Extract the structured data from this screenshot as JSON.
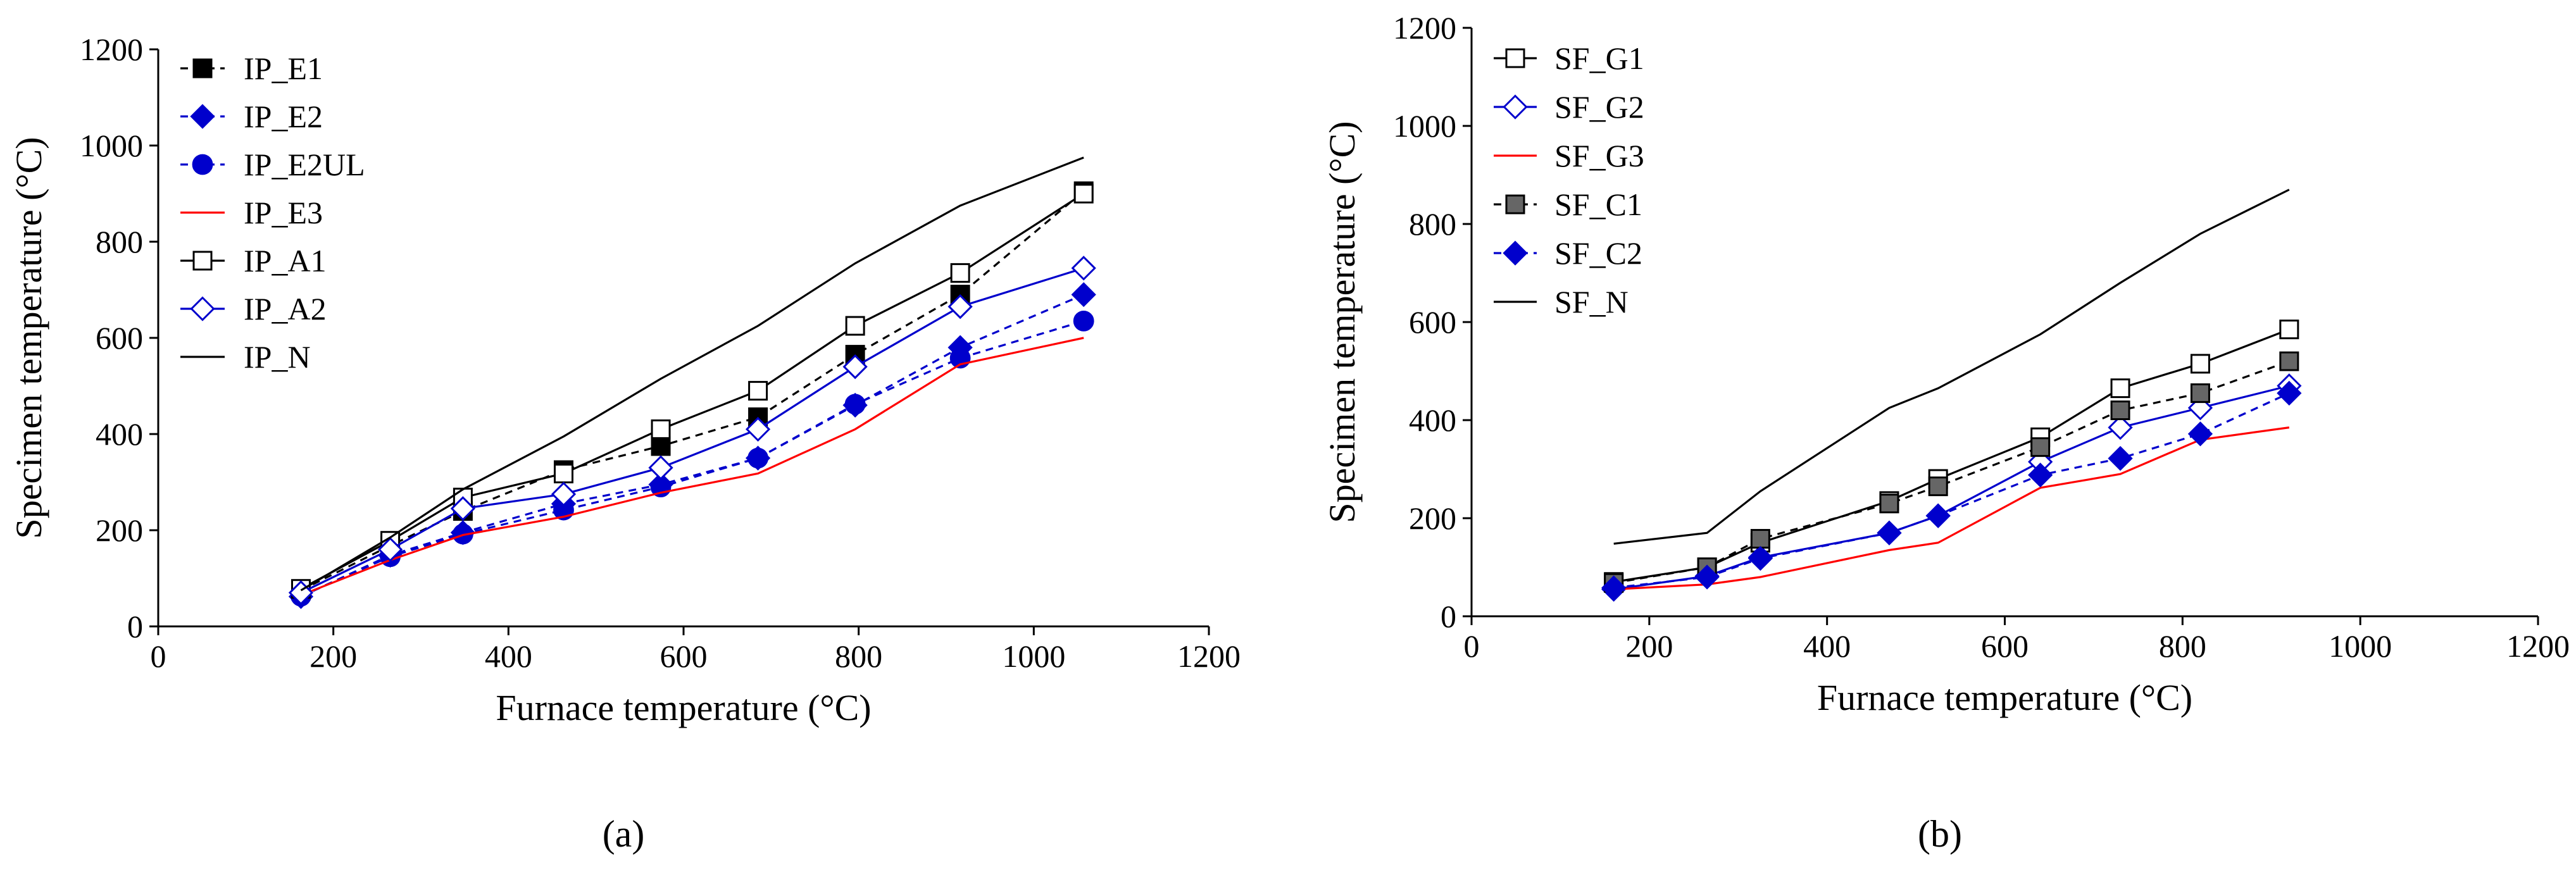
{
  "chart_data": [
    {
      "panel_label": "(a)",
      "type": "line",
      "xlabel": "Furnace temperature (°C)",
      "ylabel": "Specimen temperature (°C)",
      "xlim": [
        0,
        1200
      ],
      "ylim": [
        0,
        1200
      ],
      "xticks": [
        0,
        200,
        400,
        600,
        800,
        1000,
        1200
      ],
      "yticks": [
        0,
        200,
        400,
        600,
        800,
        1000,
        1200
      ],
      "grid": false,
      "legend_position": "top-left",
      "series": [
        {
          "name": "IP_E1",
          "color": "#000000",
          "dash": "dashed",
          "marker": "square-filled",
          "x": [
            163,
            265,
            348,
            463,
            574,
            685,
            796,
            916,
            1057
          ],
          "y": [
            75,
            168,
            240,
            325,
            375,
            435,
            565,
            690,
            905
          ]
        },
        {
          "name": "IP_E2",
          "color": "#0000cc",
          "dash": "dashed",
          "marker": "diamond-filled",
          "x": [
            163,
            265,
            348,
            463,
            574,
            685,
            796,
            916,
            1057
          ],
          "y": [
            62,
            148,
            195,
            255,
            295,
            350,
            460,
            580,
            690
          ]
        },
        {
          "name": "IP_E2UL",
          "color": "#0000cc",
          "dash": "dashed",
          "marker": "circle-filled",
          "x": [
            163,
            265,
            348,
            463,
            574,
            685,
            796,
            916,
            1057
          ],
          "y": [
            63,
            145,
            192,
            242,
            290,
            350,
            462,
            558,
            635
          ]
        },
        {
          "name": "IP_E3",
          "color": "#ff0000",
          "dash": "solid",
          "marker": "none",
          "x": [
            163,
            265,
            348,
            463,
            574,
            685,
            796,
            916,
            1057
          ],
          "y": [
            65,
            138,
            190,
            228,
            278,
            318,
            410,
            545,
            600
          ]
        },
        {
          "name": "IP_A1",
          "color": "#000000",
          "dash": "solid",
          "marker": "square-open",
          "x": [
            163,
            265,
            348,
            463,
            574,
            685,
            796,
            916,
            1057
          ],
          "y": [
            78,
            178,
            268,
            318,
            410,
            490,
            625,
            735,
            900
          ]
        },
        {
          "name": "IP_A2",
          "color": "#0000cc",
          "dash": "solid",
          "marker": "diamond-open",
          "x": [
            163,
            265,
            348,
            463,
            574,
            685,
            796,
            916,
            1057
          ],
          "y": [
            70,
            160,
            245,
            275,
            330,
            410,
            540,
            665,
            745
          ]
        },
        {
          "name": "IP_N",
          "color": "#000000",
          "dash": "solid",
          "marker": "none",
          "x": [
            163,
            265,
            348,
            463,
            574,
            685,
            796,
            916,
            1057
          ],
          "y": [
            75,
            185,
            285,
            395,
            515,
            625,
            755,
            875,
            975
          ]
        }
      ]
    },
    {
      "panel_label": "(b)",
      "type": "line",
      "xlabel": "Furnace temperature (°C)",
      "ylabel": "Specimen temperature (°C)",
      "xlim": [
        0,
        1200
      ],
      "ylim": [
        0,
        1200
      ],
      "xticks": [
        0,
        200,
        400,
        600,
        800,
        1000,
        1200
      ],
      "yticks": [
        0,
        200,
        400,
        600,
        800,
        1000,
        1200
      ],
      "grid": false,
      "legend_position": "top-left",
      "series": [
        {
          "name": "SF_G1",
          "color": "#000000",
          "dash": "solid",
          "marker": "square-open",
          "x": [
            160,
            265,
            325,
            470,
            525,
            640,
            730,
            820,
            920
          ],
          "y": [
            70,
            100,
            150,
            235,
            280,
            365,
            465,
            515,
            585
          ]
        },
        {
          "name": "SF_G2",
          "color": "#0000cc",
          "dash": "solid",
          "marker": "diamond-open",
          "x": [
            160,
            265,
            325,
            470,
            525,
            640,
            730,
            820,
            920
          ],
          "y": [
            55,
            82,
            120,
            170,
            205,
            315,
            385,
            425,
            470
          ]
        },
        {
          "name": "SF_G3",
          "color": "#ff0000",
          "dash": "solid",
          "marker": "none",
          "x": [
            160,
            265,
            325,
            470,
            525,
            640,
            730,
            820,
            920
          ],
          "y": [
            55,
            65,
            80,
            135,
            150,
            262,
            290,
            360,
            385
          ]
        },
        {
          "name": "SF_C1",
          "color": "#000000",
          "dash": "dashed",
          "marker": "square-gray",
          "x": [
            160,
            265,
            325,
            470,
            525,
            640,
            730,
            820,
            920
          ],
          "y": [
            68,
            100,
            158,
            230,
            265,
            345,
            420,
            455,
            520
          ]
        },
        {
          "name": "SF_C2",
          "color": "#0000cc",
          "dash": "dashed",
          "marker": "diamond-filled",
          "x": [
            160,
            265,
            325,
            470,
            525,
            640,
            730,
            820,
            920
          ],
          "y": [
            58,
            80,
            118,
            170,
            205,
            288,
            322,
            372,
            455
          ]
        },
        {
          "name": "SF_N",
          "color": "#000000",
          "dash": "solid",
          "marker": "none",
          "x": [
            160,
            265,
            325,
            470,
            525,
            640,
            730,
            820,
            920
          ],
          "y": [
            148,
            170,
            255,
            425,
            465,
            575,
            680,
            780,
            870
          ]
        }
      ]
    }
  ]
}
